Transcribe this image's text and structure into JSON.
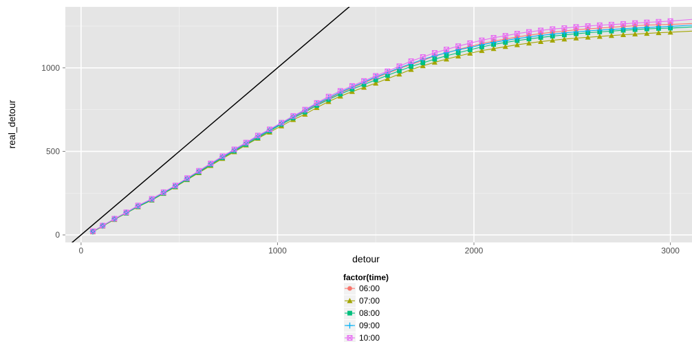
{
  "chart_data": {
    "type": "line",
    "title": "",
    "xlabel": "detour",
    "ylabel": "real_detour",
    "xlim": [
      -80,
      3110
    ],
    "ylim": [
      -45,
      1365
    ],
    "x_ticks": [
      0,
      1000,
      2000,
      3000
    ],
    "y_ticks": [
      0,
      500,
      1000
    ],
    "grid": true,
    "legend": {
      "title": "factor(time)",
      "position": "bottom"
    },
    "reference_line": {
      "slope": 1,
      "intercept": 0,
      "color": "#000000"
    },
    "x": [
      60,
      110,
      170,
      230,
      290,
      360,
      420,
      480,
      540,
      600,
      660,
      720,
      780,
      840,
      900,
      960,
      1020,
      1080,
      1140,
      1200,
      1260,
      1320,
      1380,
      1440,
      1500,
      1560,
      1620,
      1680,
      1740,
      1800,
      1860,
      1920,
      1980,
      2040,
      2100,
      2160,
      2220,
      2280,
      2340,
      2400,
      2460,
      2520,
      2580,
      2640,
      2700,
      2760,
      2820,
      2880,
      2940,
      3000,
      3110
    ],
    "series": [
      {
        "name": "06:00",
        "color": "#F8766D",
        "marker": "circle",
        "values": [
          20,
          55,
          95,
          132,
          172,
          212,
          250,
          290,
          335,
          378,
          422,
          465,
          505,
          545,
          585,
          625,
          665,
          705,
          740,
          780,
          815,
          850,
          880,
          910,
          940,
          968,
          995,
          1020,
          1045,
          1070,
          1090,
          1110,
          1128,
          1145,
          1160,
          1172,
          1185,
          1195,
          1205,
          1213,
          1220,
          1228,
          1233,
          1238,
          1243,
          1248,
          1252,
          1256,
          1258,
          1260,
          1265
        ]
      },
      {
        "name": "07:00",
        "color": "#A3A500",
        "marker": "triangle",
        "values": [
          18,
          52,
          92,
          130,
          168,
          208,
          248,
          287,
          330,
          372,
          415,
          457,
          497,
          538,
          578,
          615,
          652,
          690,
          722,
          762,
          798,
          830,
          858,
          883,
          908,
          935,
          962,
          990,
          1012,
          1033,
          1052,
          1070,
          1087,
          1103,
          1115,
          1127,
          1138,
          1148,
          1157,
          1165,
          1172,
          1178,
          1183,
          1188,
          1193,
          1198,
          1202,
          1206,
          1210,
          1213,
          1220
        ]
      },
      {
        "name": "08:00",
        "color": "#00BF7D",
        "marker": "square",
        "values": [
          20,
          54,
          94,
          131,
          170,
          210,
          250,
          290,
          333,
          376,
          420,
          462,
          502,
          542,
          582,
          622,
          662,
          700,
          735,
          775,
          810,
          843,
          872,
          900,
          928,
          955,
          982,
          1008,
          1030,
          1052,
          1072,
          1090,
          1108,
          1125,
          1140,
          1152,
          1163,
          1173,
          1182,
          1190,
          1197,
          1204,
          1210,
          1215,
          1220,
          1225,
          1229,
          1233,
          1236,
          1238,
          1245
        ]
      },
      {
        "name": "09:00",
        "color": "#00B0F6",
        "marker": "plus",
        "values": [
          20,
          55,
          96,
          134,
          174,
          214,
          254,
          294,
          338,
          382,
          426,
          468,
          508,
          550,
          590,
          628,
          668,
          708,
          745,
          785,
          820,
          855,
          885,
          915,
          945,
          972,
          1000,
          1025,
          1050,
          1072,
          1090,
          1108,
          1122,
          1138,
          1152,
          1164,
          1175,
          1185,
          1194,
          1202,
          1209,
          1215,
          1221,
          1226,
          1230,
          1234,
          1238,
          1242,
          1245,
          1248,
          1255
        ]
      },
      {
        "name": "10:00",
        "color": "#E76BF3",
        "marker": "box",
        "values": [
          22,
          56,
          97,
          135,
          176,
          216,
          256,
          296,
          340,
          384,
          428,
          471,
          512,
          553,
          595,
          632,
          672,
          712,
          750,
          790,
          828,
          862,
          892,
          922,
          952,
          980,
          1010,
          1040,
          1065,
          1090,
          1110,
          1130,
          1148,
          1165,
          1180,
          1192,
          1205,
          1215,
          1224,
          1232,
          1238,
          1245,
          1250,
          1255,
          1259,
          1263,
          1268,
          1272,
          1276,
          1280,
          1290
        ]
      }
    ]
  }
}
